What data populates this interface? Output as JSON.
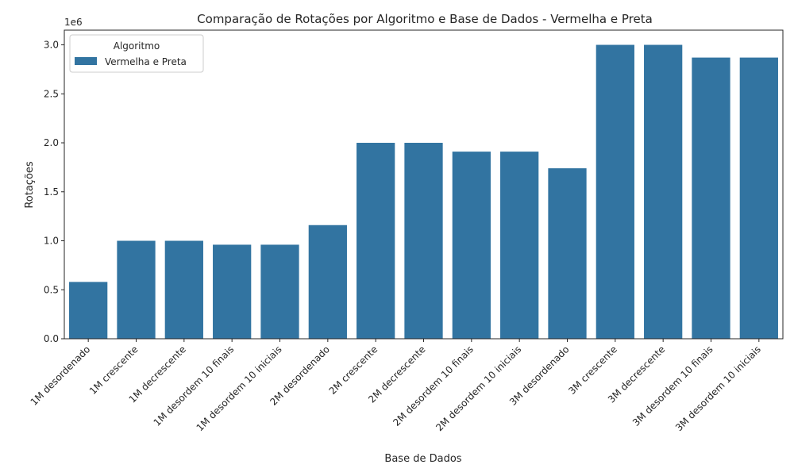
{
  "chart_data": {
    "type": "bar",
    "title": "Comparação de Rotações por Algoritmo e Base de Dados - Vermelha e Preta",
    "xlabel": "Base de Dados",
    "ylabel": "Rotações",
    "y_scale_label": "1e6",
    "ylim": [
      0,
      3150000
    ],
    "y_ticks": [
      0,
      500000,
      1000000,
      1500000,
      2000000,
      2500000,
      3000000
    ],
    "y_tick_labels": [
      "0.0",
      "0.5",
      "1.0",
      "1.5",
      "2.0",
      "2.5",
      "3.0"
    ],
    "grid": false,
    "legend": {
      "title": "Algoritmo",
      "position": "top-left"
    },
    "categories": [
      "1M desordenado",
      "1M crescente",
      "1M decrescente",
      "1M desordem 10 finais",
      "1M desordem 10 iniciais",
      "2M desordenado",
      "2M crescente",
      "2M decrescente",
      "2M desordem 10 finais",
      "2M desordem 10 iniciais",
      "3M desordenado",
      "3M crescente",
      "3M decrescente",
      "3M desordem 10 finais",
      "3M desordem 10 iniciais"
    ],
    "series": [
      {
        "name": "Vermelha e Preta",
        "color": "#3274a1",
        "values": [
          580000,
          1000000,
          1000000,
          960000,
          960000,
          1160000,
          2000000,
          2000000,
          1910000,
          1910000,
          1740000,
          3000000,
          3000000,
          2870000,
          2870000
        ]
      }
    ]
  }
}
